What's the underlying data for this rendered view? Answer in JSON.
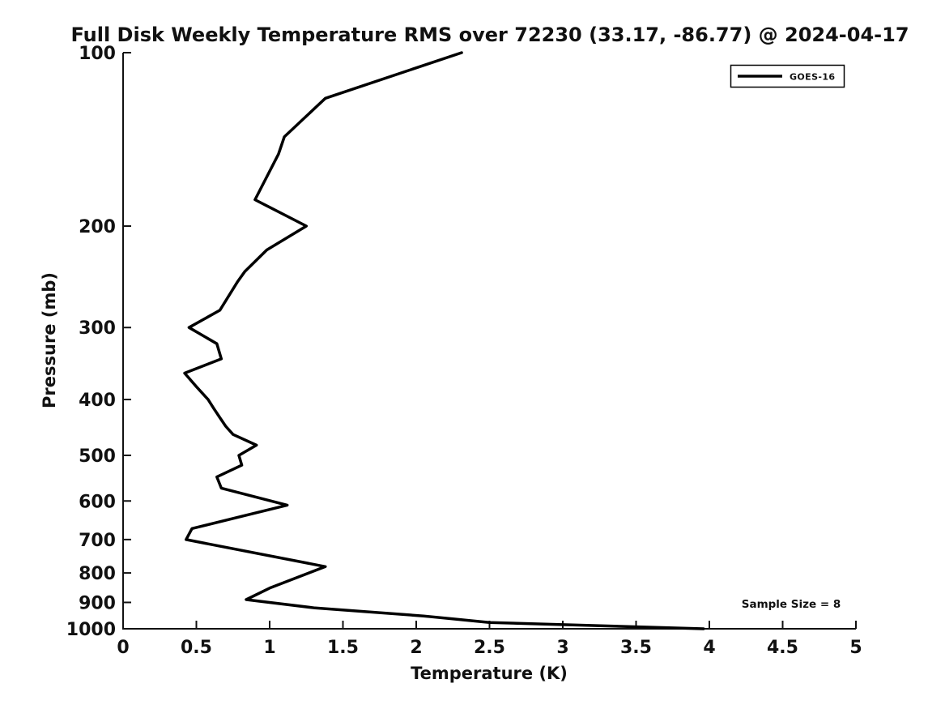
{
  "chart_data": {
    "type": "line",
    "title": "Full Disk Weekly Temperature RMS over 72230 (33.17, -86.77) @ 2024-04-17",
    "xlabel": "Temperature (K)",
    "ylabel": "Pressure (mb)",
    "xlim": [
      0,
      5
    ],
    "ylim": [
      100,
      1000
    ],
    "yscale": "log",
    "y_inverted": true,
    "grid": false,
    "x_ticks": [
      0,
      0.5,
      1,
      1.5,
      2,
      2.5,
      3,
      3.5,
      4,
      4.5,
      5
    ],
    "y_ticks": [
      100,
      200,
      300,
      400,
      500,
      600,
      700,
      800,
      900,
      1000
    ],
    "legend": {
      "position": "top-right",
      "entries": [
        {
          "label": "GOES-16",
          "color": "#000000",
          "line_width": 3.5
        }
      ]
    },
    "annotation": "Sample Size = 8",
    "series": [
      {
        "name": "GOES-16",
        "color": "#000000",
        "line_width": 3.5,
        "points": [
          {
            "pressure_mb": 100,
            "rms_k": 2.31
          },
          {
            "pressure_mb": 120,
            "rms_k": 1.38
          },
          {
            "pressure_mb": 140,
            "rms_k": 1.1
          },
          {
            "pressure_mb": 150,
            "rms_k": 1.06
          },
          {
            "pressure_mb": 180,
            "rms_k": 0.9
          },
          {
            "pressure_mb": 200,
            "rms_k": 1.25
          },
          {
            "pressure_mb": 220,
            "rms_k": 0.98
          },
          {
            "pressure_mb": 240,
            "rms_k": 0.83
          },
          {
            "pressure_mb": 250,
            "rms_k": 0.78
          },
          {
            "pressure_mb": 280,
            "rms_k": 0.66
          },
          {
            "pressure_mb": 300,
            "rms_k": 0.45
          },
          {
            "pressure_mb": 320,
            "rms_k": 0.64
          },
          {
            "pressure_mb": 340,
            "rms_k": 0.67
          },
          {
            "pressure_mb": 360,
            "rms_k": 0.42
          },
          {
            "pressure_mb": 380,
            "rms_k": 0.5
          },
          {
            "pressure_mb": 400,
            "rms_k": 0.58
          },
          {
            "pressure_mb": 415,
            "rms_k": 0.62
          },
          {
            "pressure_mb": 430,
            "rms_k": 0.66
          },
          {
            "pressure_mb": 445,
            "rms_k": 0.7
          },
          {
            "pressure_mb": 460,
            "rms_k": 0.75
          },
          {
            "pressure_mb": 480,
            "rms_k": 0.91
          },
          {
            "pressure_mb": 500,
            "rms_k": 0.79
          },
          {
            "pressure_mb": 520,
            "rms_k": 0.81
          },
          {
            "pressure_mb": 545,
            "rms_k": 0.64
          },
          {
            "pressure_mb": 570,
            "rms_k": 0.67
          },
          {
            "pressure_mb": 610,
            "rms_k": 1.12
          },
          {
            "pressure_mb": 670,
            "rms_k": 0.47
          },
          {
            "pressure_mb": 700,
            "rms_k": 0.43
          },
          {
            "pressure_mb": 780,
            "rms_k": 1.38
          },
          {
            "pressure_mb": 850,
            "rms_k": 1.0
          },
          {
            "pressure_mb": 890,
            "rms_k": 0.84
          },
          {
            "pressure_mb": 920,
            "rms_k": 1.31
          },
          {
            "pressure_mb": 950,
            "rms_k": 2.05
          },
          {
            "pressure_mb": 975,
            "rms_k": 2.5
          },
          {
            "pressure_mb": 1000,
            "rms_k": 3.96
          }
        ]
      }
    ]
  },
  "colors": {
    "background": "#ffffff",
    "axis": "#111111",
    "text": "#111111",
    "series": "#000000"
  }
}
